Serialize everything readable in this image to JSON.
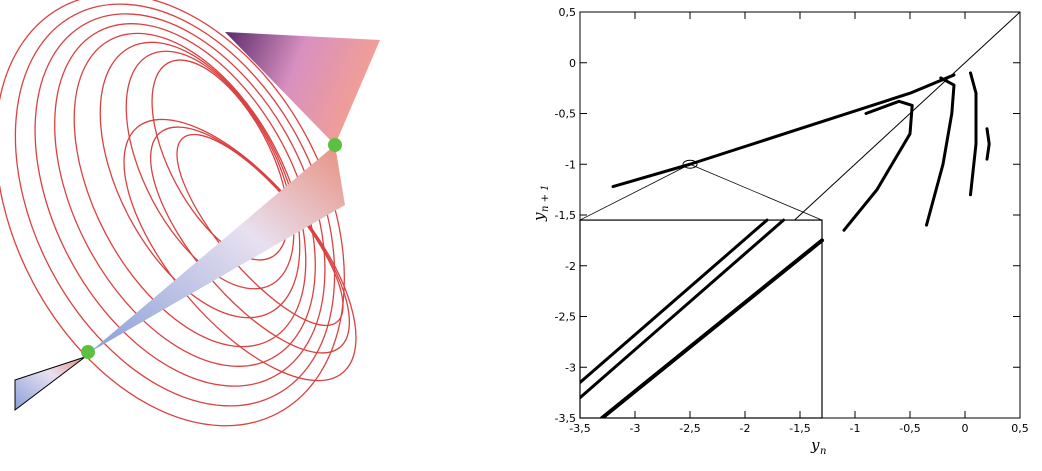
{
  "chart_data": {
    "type": "line",
    "xlabel": {
      "text": "y",
      "sub": "n"
    },
    "ylabel": {
      "text": "y",
      "sub": "n + 1"
    },
    "xlim": [
      -3.5,
      0.5
    ],
    "ylim": [
      -3.5,
      0.5
    ],
    "xticks": [
      {
        "value": -3.5,
        "label": "-3,5"
      },
      -3,
      {
        "value": -2.5,
        "label": "-2,5"
      },
      -2,
      {
        "value": -1.5,
        "label": "-1,5"
      },
      -1,
      {
        "value": -0.5,
        "label": "-0,5"
      },
      0,
      {
        "value": 0.5,
        "label": "0,5"
      }
    ],
    "yticks": [
      {
        "value": -3.5,
        "label": "-3,5"
      },
      -3,
      {
        "value": -2.5,
        "label": "-2,5"
      },
      -2,
      {
        "value": -1.5,
        "label": "-1,5"
      },
      -1,
      {
        "value": -0.5,
        "label": "-0,5"
      },
      0,
      {
        "value": 0.5,
        "label": "0,5"
      }
    ],
    "series": [
      {
        "color": "#000000",
        "linewidth": 1,
        "x": [
          -3.5,
          0.5
        ],
        "y": [
          -3.5,
          0.5
        ]
      },
      {
        "color": "#000000",
        "linewidth": 3,
        "x": [
          -3.2,
          -2.5,
          -1.5,
          -0.5,
          -0.1
        ],
        "y": [
          -1.22,
          -1.0,
          -0.65,
          -0.3,
          -0.12
        ]
      },
      {
        "color": "#000000",
        "linewidth": 3,
        "x": [
          -0.9,
          -0.6,
          -0.48,
          -0.5,
          -0.8,
          -1.1
        ],
        "y": [
          -0.5,
          -0.38,
          -0.42,
          -0.7,
          -1.25,
          -1.65
        ]
      },
      {
        "color": "#000000",
        "linewidth": 3,
        "x": [
          -0.22,
          -0.1,
          -0.12,
          -0.2,
          -0.35
        ],
        "y": [
          -0.15,
          -0.22,
          -0.5,
          -1.0,
          -1.6
        ]
      },
      {
        "color": "#000000",
        "linewidth": 3,
        "x": [
          0.05,
          0.1,
          0.1,
          0.05
        ],
        "y": [
          -0.1,
          -0.3,
          -0.8,
          -1.3
        ]
      },
      {
        "color": "#000000",
        "linewidth": 3,
        "x": [
          0.2,
          0.22,
          0.2
        ],
        "y": [
          -0.65,
          -0.8,
          -0.95
        ]
      }
    ],
    "inset": {
      "xlim": [
        -3.5,
        -1.3
      ],
      "ylim": [
        -3.5,
        -1.55
      ],
      "zoom_center": [
        -2.5,
        -1.0
      ],
      "series": [
        {
          "color": "#000000",
          "linewidth": 3,
          "x": [
            -3.5,
            -1.8
          ],
          "y": [
            -3.15,
            -1.55
          ]
        },
        {
          "color": "#000000",
          "linewidth": 3,
          "x": [
            -3.5,
            -1.65
          ],
          "y": [
            -3.3,
            -1.55
          ]
        },
        {
          "color": "#000000",
          "linewidth": 4,
          "x": [
            -3.3,
            -1.3
          ],
          "y": [
            -3.5,
            -1.75
          ]
        }
      ]
    }
  }
}
